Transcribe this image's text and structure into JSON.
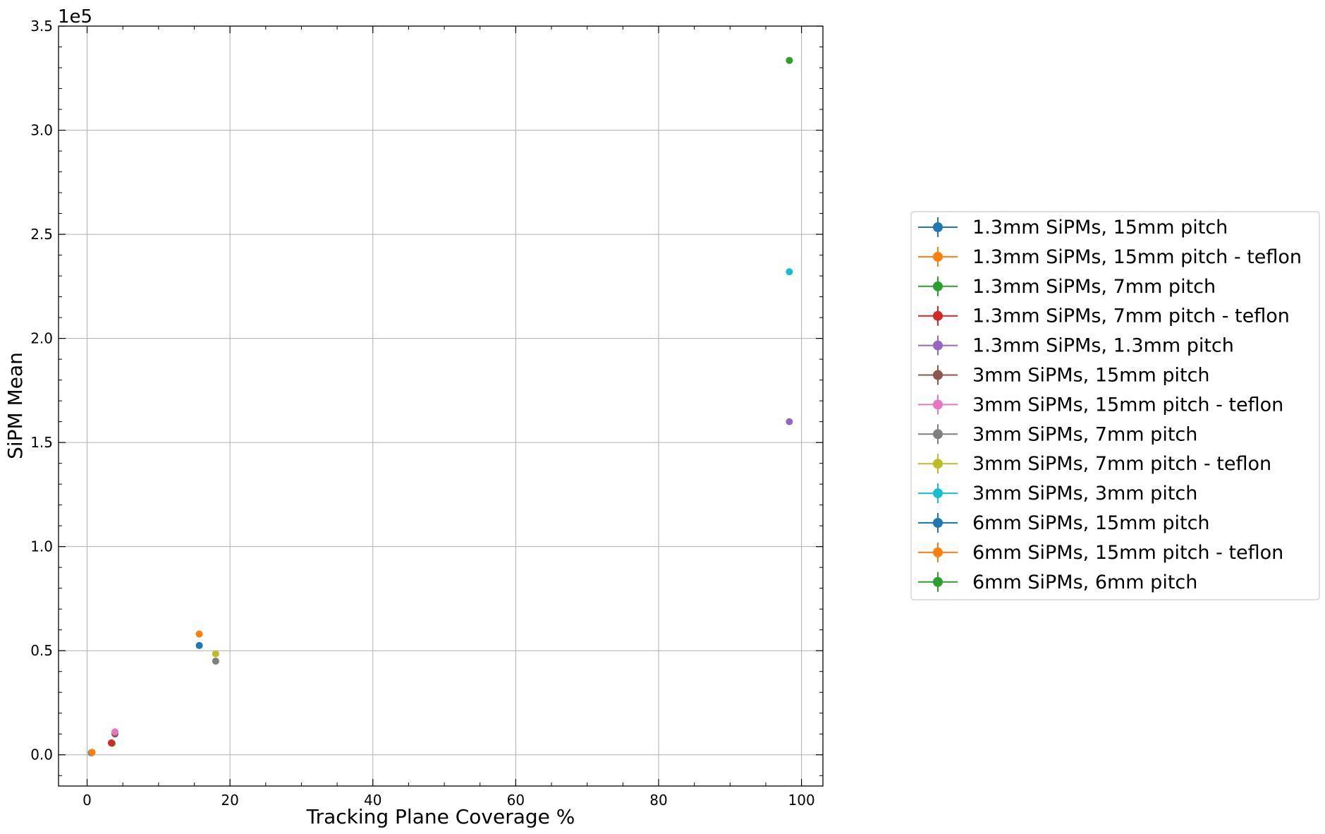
{
  "chart_data": {
    "type": "scatter",
    "xlabel": "Tracking Plane Coverage %",
    "ylabel": "SiPM Mean",
    "y_offset_label": "1e5",
    "xlim": [
      -4,
      103
    ],
    "ylim": [
      -0.15,
      3.5
    ],
    "x_ticks": [
      0,
      20,
      40,
      60,
      80,
      100
    ],
    "y_ticks": [
      0.0,
      0.5,
      1.0,
      1.5,
      2.0,
      2.5,
      3.0,
      3.5
    ],
    "x_tick_labels": [
      "0",
      "20",
      "40",
      "60",
      "80",
      "100"
    ],
    "y_tick_labels": [
      "0.0",
      "0.5",
      "1.0",
      "1.5",
      "2.0",
      "2.5",
      "3.0",
      "3.5"
    ],
    "grid": true,
    "legend_position": "right, outside plot",
    "series": [
      {
        "name": "1.3mm SiPMs, 15mm pitch",
        "color": "#1f77b4",
        "x": [
          0.6
        ],
        "y": [
          0.01
        ]
      },
      {
        "name": "1.3mm SiPMs, 15mm pitch - teflon",
        "color": "#ff7f0e",
        "x": [
          0.7
        ],
        "y": [
          0.012
        ]
      },
      {
        "name": "1.3mm SiPMs, 7mm pitch",
        "color": "#2ca02c",
        "x": [
          3.5
        ],
        "y": [
          0.055
        ]
      },
      {
        "name": "1.3mm SiPMs, 7mm pitch - teflon",
        "color": "#d62728",
        "x": [
          3.4
        ],
        "y": [
          0.057
        ]
      },
      {
        "name": "1.3mm SiPMs, 1.3mm pitch",
        "color": "#9467bd",
        "x": [
          98.3
        ],
        "y": [
          1.6
        ]
      },
      {
        "name": "3mm SiPMs, 15mm pitch",
        "color": "#8c564b",
        "x": [
          3.9
        ],
        "y": [
          0.1
        ]
      },
      {
        "name": "3mm SiPMs, 15mm pitch - teflon",
        "color": "#e377c2",
        "x": [
          3.9
        ],
        "y": [
          0.11
        ]
      },
      {
        "name": "3mm SiPMs, 7mm pitch",
        "color": "#7f7f7f",
        "x": [
          18.0
        ],
        "y": [
          0.45
        ]
      },
      {
        "name": "3mm SiPMs, 7mm pitch - teflon",
        "color": "#bcbd22",
        "x": [
          18.0
        ],
        "y": [
          0.485
        ]
      },
      {
        "name": "3mm SiPMs, 3mm pitch",
        "color": "#17becf",
        "x": [
          98.3
        ],
        "y": [
          2.32
        ]
      },
      {
        "name": "6mm SiPMs, 15mm pitch",
        "color": "#1f77b4",
        "x": [
          15.7
        ],
        "y": [
          0.525
        ]
      },
      {
        "name": "6mm SiPMs, 15mm pitch - teflon",
        "color": "#ff7f0e",
        "x": [
          15.7
        ],
        "y": [
          0.58
        ]
      },
      {
        "name": "6mm SiPMs, 6mm pitch",
        "color": "#2ca02c",
        "x": [
          98.3
        ],
        "y": [
          3.335
        ]
      }
    ]
  }
}
